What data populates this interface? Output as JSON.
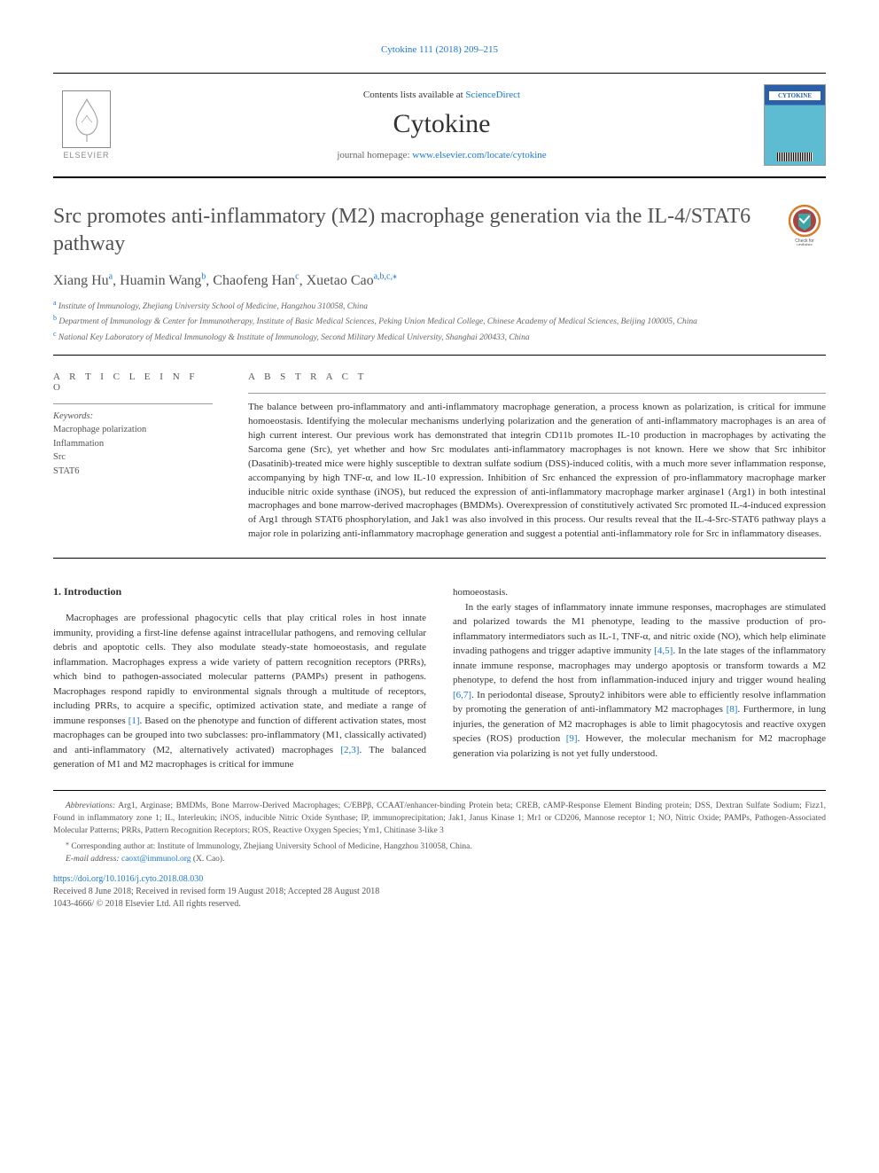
{
  "citation_header": "Cytokine 111 (2018) 209–215",
  "header": {
    "contents_prefix": "Contents lists available at ",
    "contents_link": "ScienceDirect",
    "journal_name": "Cytokine",
    "homepage_prefix": "journal homepage: ",
    "homepage_link": "www.elsevier.com/locate/cytokine",
    "cover_title": "CYTOKINE",
    "elsevier_label": "ELSEVIER"
  },
  "article": {
    "title": "Src promotes anti-inflammatory (M2) macrophage generation via the IL-4/STAT6 pathway",
    "check_updates_label": "Check for updates",
    "authors_html": "Xiang Hu<sup>a</sup>, Huamin Wang<sup>b</sup>, Chaofeng Han<sup>c</sup>, Xuetao Cao<sup>a,b,c,</sup>",
    "corresponding_mark": "⁎"
  },
  "affiliations": {
    "a": "Institute of Immunology, Zhejiang University School of Medicine, Hangzhou 310058, China",
    "b": "Department of Immunology & Center for Immunotherapy, Institute of Basic Medical Sciences, Peking Union Medical College, Chinese Academy of Medical Sciences, Beijing 100005, China",
    "c": "National Key Laboratory of Medical Immunology & Institute of Immunology, Second Military Medical University, Shanghai 200433, China"
  },
  "labels": {
    "article_info": "A R T I C L E  I N F O",
    "abstract": "A B S T R A C T",
    "keywords": "Keywords:"
  },
  "keywords": [
    "Macrophage polarization",
    "Inflammation",
    "Src",
    "STAT6"
  ],
  "abstract": "The balance between pro-inflammatory and anti-inflammatory macrophage generation, a process known as polarization, is critical for immune homoeostasis. Identifying the molecular mechanisms underlying polarization and the generation of anti-inflammatory macrophages is an area of high current interest. Our previous work has demonstrated that integrin CD11b promotes IL-10 production in macrophages by activating the Sarcoma gene (Src), yet whether and how Src modulates anti-inflammatory macrophages is not known. Here we show that Src inhibitor (Dasatinib)-treated mice were highly susceptible to dextran sulfate sodium (DSS)-induced colitis, with a much more sever inflammation response, accompanying by high TNF-α, and low IL-10 expression. Inhibition of Src enhanced the expression of pro-inflammatory macrophage marker inducible nitric oxide synthase (iNOS), but reduced the expression of anti-inflammatory macrophage marker arginase1 (Arg1) in both intestinal macrophages and bone marrow-derived macrophages (BMDMs). Overexpression of constitutively activated Src promoted IL-4-induced expression of Arg1 through STAT6 phosphorylation, and Jak1 was also involved in this process. Our results reveal that the IL-4-Src-STAT6 pathway plays a major role in polarizing anti-inflammatory macrophage generation and suggest a potential anti-inflammatory role for Src in inflammatory diseases.",
  "sections": {
    "intro_heading": "1. Introduction",
    "intro_p1_a": "Macrophages are professional phagocytic cells that play critical roles in host innate immunity, providing a first-line defense against intracellular pathogens, and removing cellular debris and apoptotic cells. They also modulate steady-state homoeostasis, and regulate inflammation. Macrophages express a wide variety of pattern recognition receptors (PRRs), which bind to pathogen-associated molecular patterns (PAMPs) present in pathogens. Macrophages respond rapidly to environmental signals through a multitude of receptors, including PRRs, to acquire a specific, optimized activation state, and mediate a range of immune responses ",
    "intro_ref1": "[1]",
    "intro_p1_b": ". Based on the phenotype and function of different activation states, most macrophages can be grouped into two subclasses: pro-inflammatory (M1, classically activated) and anti-inflammatory (M2, alternatively activated) macrophages ",
    "intro_ref23": "[2,3]",
    "intro_p1_c": ". The balanced generation of M1 and M2 macrophages is critical for immune ",
    "intro_p1_cont": "homoeostasis.",
    "intro_p2_a": "In the early stages of inflammatory innate immune responses, macrophages are stimulated and polarized towards the M1 phenotype, leading to the massive production of pro-inflammatory intermediators such as IL-1, TNF-α, and nitric oxide (NO), which help eliminate invading pathogens and trigger adaptive immunity ",
    "intro_ref45": "[4,5]",
    "intro_p2_b": ". In the late stages of the inflammatory innate immune response, macrophages may undergo apoptosis or transform towards a M2 phenotype, to defend the host from inflammation-induced injury and trigger wound healing ",
    "intro_ref67": "[6,7]",
    "intro_p2_c": ". In periodontal disease, Sprouty2 inhibitors were able to efficiently resolve inflammation by promoting the generation of anti-inflammatory M2 macrophages ",
    "intro_ref8": "[8]",
    "intro_p2_d": ". Furthermore, in lung injuries, the generation of M2 macrophages is able to limit phagocytosis and reactive oxygen species (ROS) production ",
    "intro_ref9": "[9]",
    "intro_p2_e": ". However, the molecular mechanism for M2 macrophage generation via polarizing is not yet fully understood."
  },
  "footnotes": {
    "abbrev_label": "Abbreviations:",
    "abbrev_text": " Arg1, Arginase; BMDMs, Bone Marrow-Derived Macrophages; C/EBPβ, CCAAT/enhancer-binding Protein beta; CREB, cAMP-Response Element Binding protein; DSS, Dextran Sulfate Sodium; Fizz1, Found in inflammatory zone 1; IL, Interleukin; iNOS, inducible Nitric Oxide Synthase; IP, immunoprecipitation; Jak1, Janus Kinase 1; Mr1 or CD206, Mannose receptor 1; NO, Nitric Oxide; PAMPs, Pathogen-Associated Molecular Patterns; PRRs, Pattern Recognition Receptors; ROS, Reactive Oxygen Species; Ym1, Chitinase 3-like 3",
    "corr_mark": "⁎",
    "corr_text": " Corresponding author at: Institute of Immunology, Zhejiang University School of Medicine, Hangzhou 310058, China.",
    "email_label": "E-mail address: ",
    "email_link": "caoxt@immunol.org",
    "email_suffix": " (X. Cao).",
    "doi": "https://doi.org/10.1016/j.cyto.2018.08.030",
    "received": "Received 8 June 2018; Received in revised form 19 August 2018; Accepted 28 August 2018",
    "copyright": "1043-4666/ © 2018 Elsevier Ltd. All rights reserved."
  },
  "colors": {
    "link": "#1976d2",
    "text": "#333333",
    "muted": "#666666",
    "title": "#525252",
    "badge_outer": "#d87c2a",
    "badge_inner": "#a94442",
    "badge_tag": "#3aa6a6"
  }
}
